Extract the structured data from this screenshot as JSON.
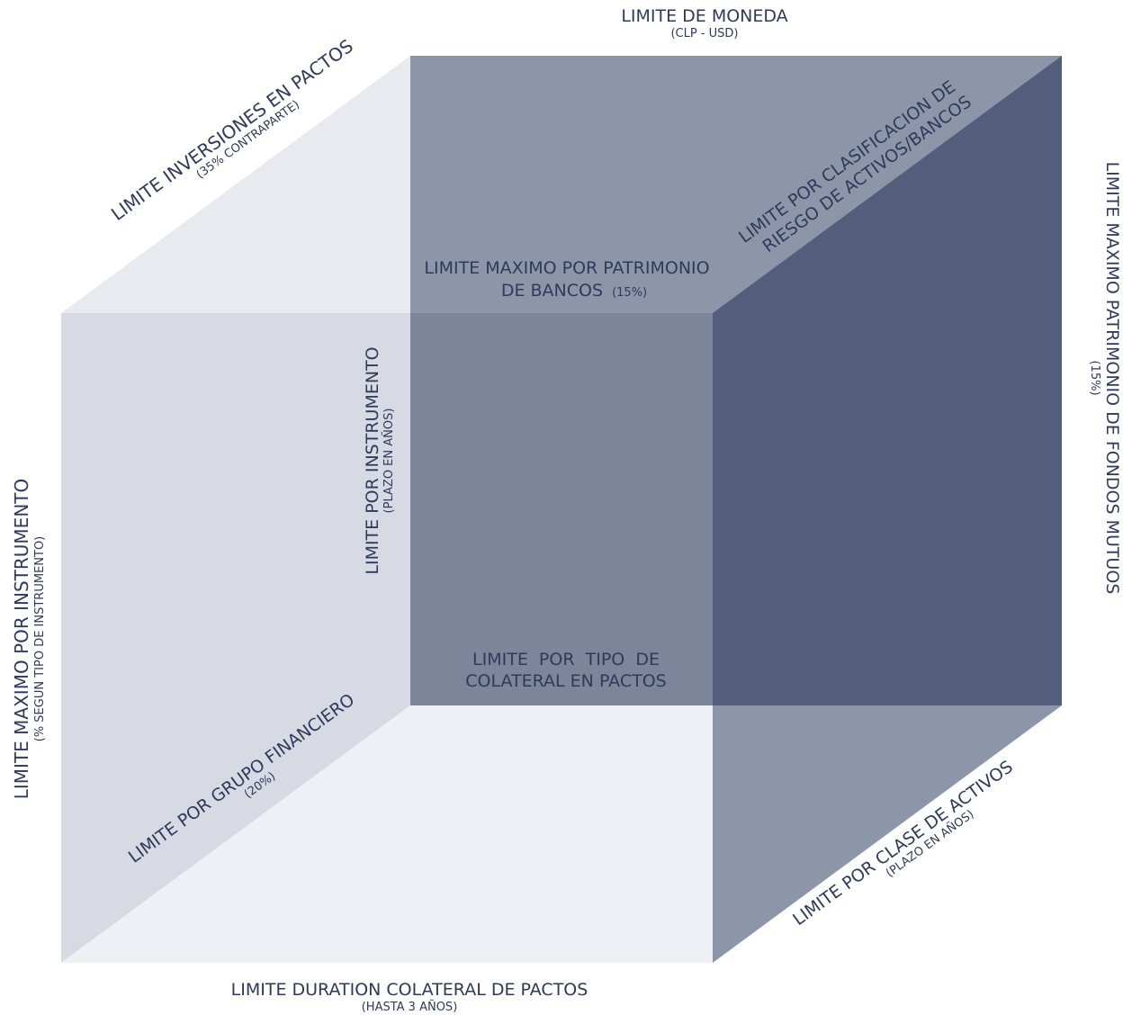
{
  "colors": {
    "back_face": "#8d96a9",
    "left_face": "#d7dae3",
    "top_face": "#e8eaf0",
    "bottom_face": "#eef0f5",
    "front_overlay": "#7d859a",
    "right_face": "#535d7c",
    "right_bottom_face": "#8d95a9",
    "label": "#2e3a5c"
  },
  "labels": {
    "moneda": {
      "main": "LIMITE DE MONEDA",
      "sub": "(CLP - USD)"
    },
    "inversiones": {
      "main": "LIMITE INVERSIONES EN PACTOS",
      "sub": "(35% CONTRAPARTE)"
    },
    "clasificacion": {
      "line1": "LIMITE POR CLASIFICACION DE",
      "line2": "RIESGO DE ACTIVOS/BANCOS"
    },
    "patrimonio_fondos": {
      "main": "LIMITE MAXIMO PATRIMONIO DE FONDOS MUTUOS",
      "sub": "(15%)"
    },
    "patrimonio_bancos": {
      "line1": "LIMITE MAXIMO POR PATRIMONIO",
      "line2": "DE BANCOS",
      "sub": "(15%)"
    },
    "por_instrumento": {
      "main": "LIMITE POR INSTRUMENTO",
      "sub": "(PLAZO EN AÑOS)"
    },
    "maximo_instrumento": {
      "main": "LIMITE MAXIMO POR INSTRUMENTO",
      "sub": "(% SEGUN  TIPO DE INSTRUMENTO)"
    },
    "colateral": {
      "line1": "LIMITE  POR  TIPO  DE",
      "line2": "COLATERAL EN PACTOS"
    },
    "grupo": {
      "main": "LIMITE POR GRUPO FINANCIERO",
      "sub": "(20%)"
    },
    "clase_activos": {
      "main": "LIMITE POR CLASE DE ACTIVOS",
      "sub": "(PLAZO EN AÑOS)"
    },
    "duration": {
      "main": "LIMITE DURATION COLATERAL DE PACTOS",
      "sub": "(HASTA 3 AÑOS)"
    }
  }
}
